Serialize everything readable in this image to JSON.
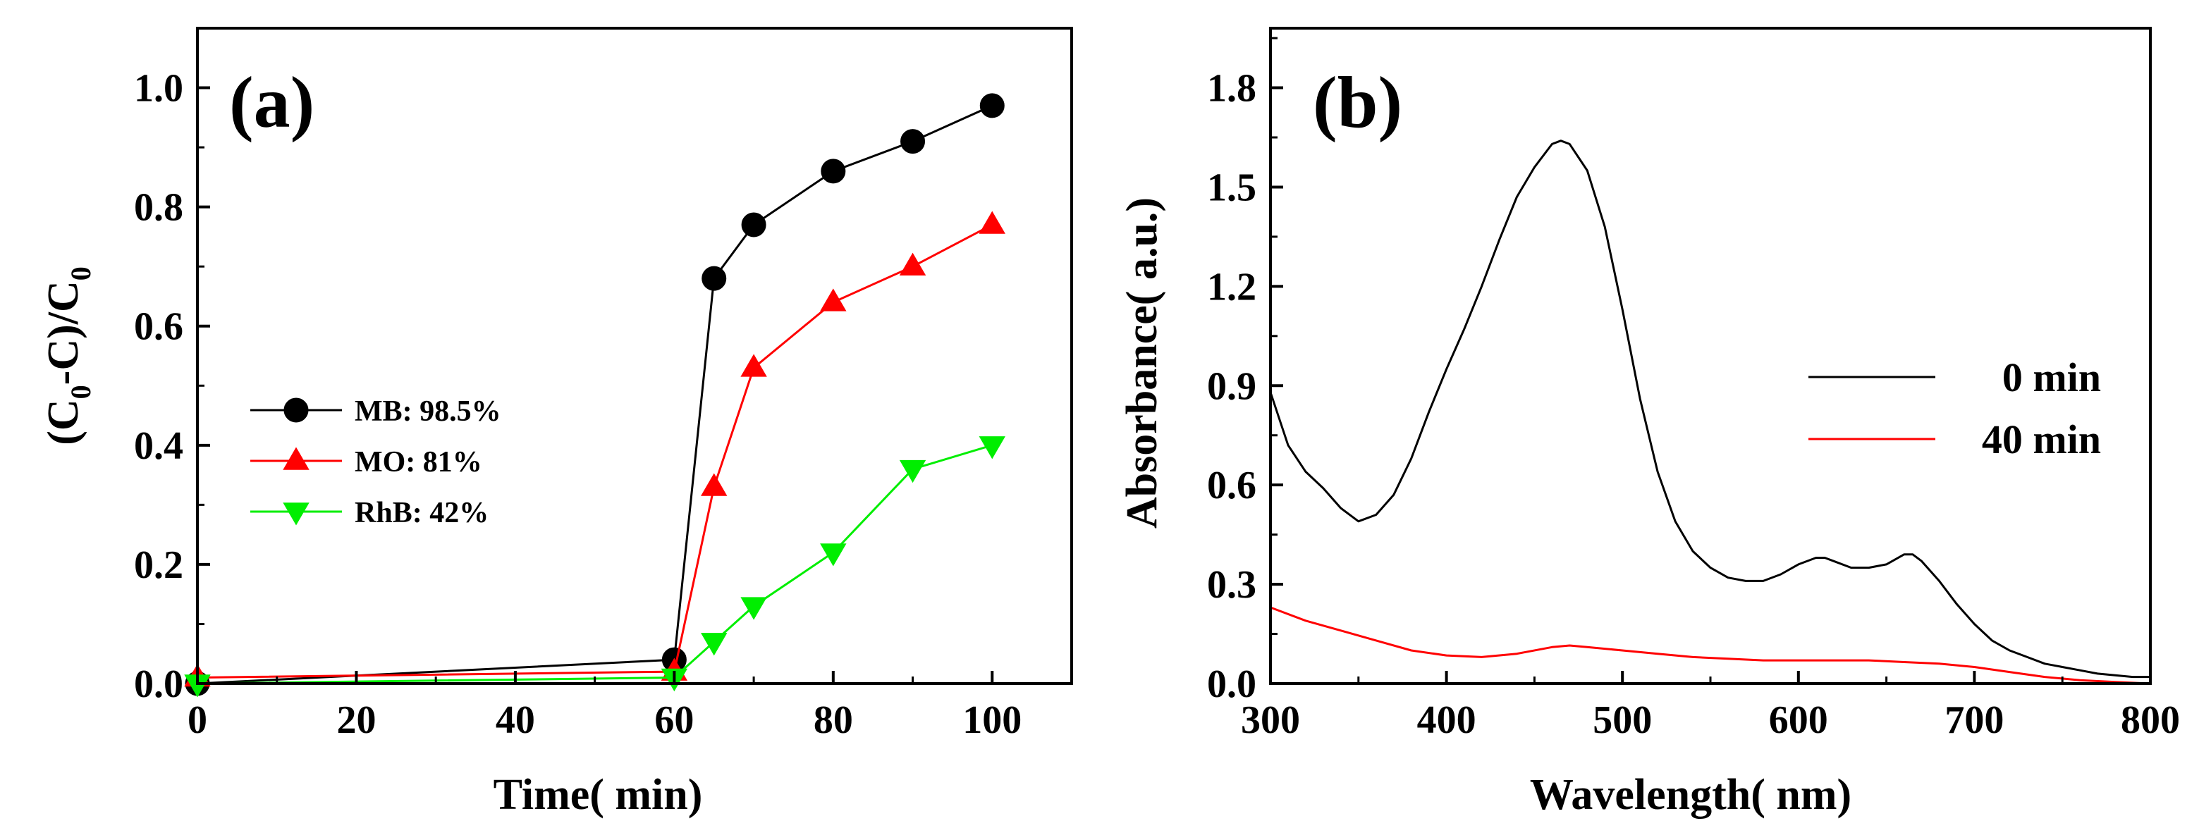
{
  "chart_data": [
    {
      "panel": "(a)",
      "type": "line",
      "xlabel": "Time( min)",
      "ylabel_parts": {
        "open": "(C",
        "sub1": "0",
        "mid": "-C)/C",
        "sub2": "0"
      },
      "xlim": [
        0,
        110
      ],
      "ylim": [
        0,
        1.1
      ],
      "xticks": [
        0,
        20,
        40,
        60,
        80,
        100
      ],
      "yticks": [
        0.0,
        0.2,
        0.4,
        0.6,
        0.8,
        1.0
      ],
      "xtick_labels": [
        "0",
        "20",
        "40",
        "60",
        "80",
        "100"
      ],
      "ytick_labels": [
        "0.0",
        "0.2",
        "0.4",
        "0.6",
        "0.8",
        "1.0"
      ],
      "legend_position": "center-left",
      "grid": false,
      "series": [
        {
          "name": "MB",
          "legend": "MB: 98.5%",
          "color": "#000000",
          "marker": "circle",
          "x": [
            0,
            60,
            65,
            70,
            80,
            90,
            100
          ],
          "y": [
            0.0,
            0.04,
            0.68,
            0.77,
            0.86,
            0.91,
            0.97
          ]
        },
        {
          "name": "MO",
          "legend": "MO: 81%",
          "color": "#ff0000",
          "marker": "triangle-up",
          "x": [
            0,
            60,
            65,
            70,
            80,
            90,
            100
          ],
          "y": [
            0.01,
            0.02,
            0.33,
            0.53,
            0.64,
            0.7,
            0.77
          ]
        },
        {
          "name": "RhB",
          "legend": "RhB: 42%",
          "color": "#00ee00",
          "marker": "triangle-down",
          "x": [
            0,
            60,
            65,
            70,
            80,
            90,
            100
          ],
          "y": [
            0.0,
            0.01,
            0.07,
            0.13,
            0.22,
            0.36,
            0.4
          ]
        }
      ]
    },
    {
      "panel": "(b)",
      "type": "line",
      "xlabel": "Wavelength( nm)",
      "ylabel": "Absorbance( a.u.)",
      "xlim": [
        300,
        800
      ],
      "ylim": [
        0,
        1.98
      ],
      "xticks": [
        300,
        400,
        500,
        600,
        700,
        800
      ],
      "yticks": [
        0.0,
        0.3,
        0.6,
        0.9,
        1.2,
        1.5,
        1.8
      ],
      "xtick_labels": [
        "300",
        "400",
        "500",
        "600",
        "700",
        "800"
      ],
      "ytick_labels": [
        "0.0",
        "0.3",
        "0.6",
        "0.9",
        "1.2",
        "1.5",
        "1.8"
      ],
      "legend_position": "center-right",
      "grid": false,
      "series": [
        {
          "name": "0 min",
          "color": "#000000",
          "x": [
            300,
            310,
            320,
            330,
            340,
            350,
            360,
            370,
            380,
            390,
            400,
            410,
            420,
            430,
            440,
            450,
            460,
            465,
            470,
            480,
            490,
            500,
            510,
            520,
            530,
            540,
            550,
            560,
            570,
            580,
            590,
            600,
            610,
            615,
            620,
            630,
            640,
            650,
            660,
            665,
            670,
            680,
            690,
            700,
            710,
            720,
            730,
            740,
            750,
            760,
            770,
            780,
            790,
            800
          ],
          "y": [
            0.88,
            0.72,
            0.64,
            0.59,
            0.53,
            0.49,
            0.51,
            0.57,
            0.68,
            0.82,
            0.95,
            1.07,
            1.2,
            1.34,
            1.47,
            1.56,
            1.63,
            1.64,
            1.63,
            1.55,
            1.38,
            1.13,
            0.86,
            0.64,
            0.49,
            0.4,
            0.35,
            0.32,
            0.31,
            0.31,
            0.33,
            0.36,
            0.38,
            0.38,
            0.37,
            0.35,
            0.35,
            0.36,
            0.39,
            0.39,
            0.37,
            0.31,
            0.24,
            0.18,
            0.13,
            0.1,
            0.08,
            0.06,
            0.05,
            0.04,
            0.03,
            0.025,
            0.02,
            0.02
          ]
        },
        {
          "name": "40 min",
          "color": "#ff0000",
          "x": [
            300,
            320,
            340,
            360,
            380,
            400,
            420,
            440,
            460,
            470,
            480,
            500,
            520,
            540,
            560,
            580,
            600,
            620,
            640,
            660,
            680,
            700,
            720,
            740,
            760,
            780,
            800
          ],
          "y": [
            0.23,
            0.19,
            0.16,
            0.13,
            0.1,
            0.085,
            0.08,
            0.09,
            0.11,
            0.115,
            0.11,
            0.1,
            0.09,
            0.08,
            0.075,
            0.07,
            0.07,
            0.07,
            0.07,
            0.065,
            0.06,
            0.05,
            0.035,
            0.02,
            0.01,
            0.005,
            0.0
          ]
        }
      ]
    }
  ]
}
